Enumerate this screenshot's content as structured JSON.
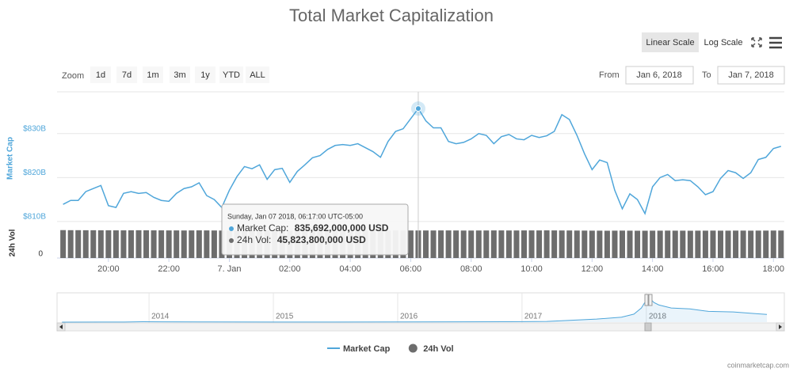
{
  "chart_data": {
    "type": "line",
    "title": "Total Market Capitalization",
    "controls": {
      "scale_buttons": [
        "Linear Scale",
        "Log Scale"
      ],
      "zoom_label": "Zoom",
      "zoom_buttons": [
        "1d",
        "7d",
        "1m",
        "3m",
        "1y",
        "YTD",
        "ALL"
      ],
      "from_label": "From",
      "from_value": "Jan 6, 2018",
      "to_label": "To",
      "to_value": "Jan 7, 2018"
    },
    "log_scale": false,
    "grid": true,
    "legend": "bottom",
    "y_label": "Market Cap",
    "y2_label": "24h Vol",
    "x": [
      18.5,
      18.75,
      19,
      19.25,
      19.5,
      19.75,
      20,
      20.25,
      20.5,
      20.75,
      21,
      21.25,
      21.5,
      21.75,
      22,
      22.25,
      22.5,
      22.75,
      23,
      23.25,
      23.5,
      23.75,
      24,
      24.25,
      24.5,
      24.75,
      25,
      25.25,
      25.5,
      25.75,
      26,
      26.25,
      26.5,
      26.75,
      27,
      27.25,
      27.5,
      27.75,
      28,
      28.25,
      28.5,
      28.75,
      29,
      29.25,
      29.5,
      29.75,
      30,
      30.25,
      30.5,
      30.75,
      31,
      31.25,
      31.5,
      31.75,
      32,
      32.25,
      32.5,
      32.75,
      33,
      33.25,
      33.5,
      33.75,
      34,
      34.25,
      34.5,
      34.75,
      35,
      35.25,
      35.5,
      35.75,
      36,
      36.25,
      36.5,
      36.75,
      37,
      37.25,
      37.5,
      37.75,
      38,
      38.25,
      38.5,
      38.75,
      39,
      39.25,
      39.5,
      39.75,
      40,
      40.25,
      40.5,
      40.75,
      41,
      41.25,
      41.5,
      41.75,
      42,
      42.25
    ],
    "xlim": [
      18.3,
      42.36
    ],
    "xticks": [
      {
        "value": 20,
        "label": "20:00"
      },
      {
        "value": 22,
        "label": "22:00"
      },
      {
        "value": 24,
        "label": "7. Jan"
      },
      {
        "value": 26,
        "label": "02:00"
      },
      {
        "value": 28,
        "label": "04:00"
      },
      {
        "value": 30,
        "label": "06:00"
      },
      {
        "value": 32,
        "label": "08:00"
      },
      {
        "value": 34,
        "label": "10:00"
      },
      {
        "value": 36,
        "label": "12:00"
      },
      {
        "value": 38,
        "label": "14:00"
      },
      {
        "value": 40,
        "label": "16:00"
      },
      {
        "value": 42,
        "label": "18:00"
      }
    ],
    "ylim": [
      808.9,
      839.5
    ],
    "yticks": [
      {
        "value": 810,
        "label": "$810B"
      },
      {
        "value": 820,
        "label": "$820B"
      },
      {
        "value": 830,
        "label": "$830B"
      }
    ],
    "y2lim": [
      0,
      50
    ],
    "y2ticks": [
      0
    ],
    "series": [
      {
        "name": "Market Cap",
        "color": "#4fa6da",
        "values": [
          813.9,
          814.8,
          814.8,
          816.8,
          817.5,
          818.2,
          813.6,
          813.2,
          816.4,
          816.8,
          816.4,
          816.6,
          815.5,
          814.8,
          814.6,
          816.4,
          817.5,
          817.9,
          818.8,
          815.9,
          815.0,
          813.2,
          817.1,
          820.2,
          822.5,
          822.0,
          822.9,
          819.6,
          821.8,
          822.1,
          818.9,
          821.4,
          822.9,
          824.5,
          825.0,
          826.4,
          827.3,
          827.5,
          827.3,
          827.7,
          826.8,
          825.9,
          824.6,
          828.2,
          830.5,
          831.1,
          833.4,
          835.692,
          832.9,
          831.3,
          831.3,
          828.2,
          827.7,
          828.0,
          828.8,
          830.0,
          829.6,
          827.7,
          829.3,
          829.8,
          828.8,
          828.6,
          829.6,
          829.1,
          829.5,
          830.5,
          834.3,
          833.2,
          829.6,
          825.4,
          821.8,
          824.0,
          823.4,
          817.1,
          812.9,
          816.3,
          815.0,
          811.8,
          817.9,
          820.0,
          820.7,
          819.3,
          819.5,
          819.3,
          817.9,
          816.1,
          816.8,
          819.8,
          821.6,
          821.1,
          819.8,
          821.1,
          824.1,
          824.6,
          826.6,
          827.1
        ]
      },
      {
        "name": "24h Vol",
        "color": "#6d6d6d",
        "axis": "y2",
        "values": [
          46.4,
          46.3,
          46.3,
          46.2,
          46.2,
          46.1,
          46.1,
          46.0,
          46.0,
          46.1,
          46.2,
          46.1,
          46.0,
          46.0,
          45.9,
          45.9,
          45.8,
          45.9,
          46.0,
          45.9,
          45.8,
          45.7,
          45.7,
          45.6,
          45.8,
          45.9,
          45.9,
          45.8,
          45.8,
          45.7,
          45.7,
          45.8,
          45.9,
          46.0,
          46.0,
          45.9,
          45.9,
          45.8,
          45.8,
          45.9,
          45.9,
          45.8,
          45.8,
          45.8,
          45.9,
          45.9,
          45.8,
          45.8238,
          45.8,
          45.8,
          45.9,
          45.9,
          45.8,
          45.7,
          45.7,
          45.8,
          45.8,
          45.9,
          45.9,
          45.8,
          45.8,
          45.9,
          45.9,
          45.9,
          46.0,
          45.9,
          45.8,
          45.8,
          45.7,
          45.6,
          45.5,
          45.5,
          45.4,
          45.5,
          45.6,
          45.5,
          45.4,
          45.4,
          45.5,
          45.5,
          45.6,
          45.5,
          45.5,
          45.4,
          45.5,
          45.5,
          45.6,
          45.5,
          45.5,
          45.6,
          45.6,
          45.5,
          45.6,
          45.6,
          45.7,
          45.7
        ]
      }
    ],
    "tooltip": {
      "index": 47,
      "header": "Sunday, Jan 07 2018, 06:17:00 UTC-05:00",
      "rows": [
        {
          "label": "Market Cap: ",
          "value": "835,692,000,000 USD"
        },
        {
          "label": "24h Vol: ",
          "value": "45,823,800,000 USD"
        }
      ]
    },
    "navigator": {
      "x": [
        2013.3,
        2013.8,
        2013.95,
        2014.1,
        2014.5,
        2015,
        2015.5,
        2016,
        2016.5,
        2016.9,
        2017.2,
        2017.4,
        2017.6,
        2017.8,
        2017.9,
        2017.96,
        2018.0,
        2018.02,
        2018.06,
        2018.1,
        2018.2,
        2018.35,
        2018.5,
        2018.7,
        2018.9,
        2018.97
      ],
      "values": [
        1.5,
        3,
        12,
        9,
        7,
        4,
        4,
        6,
        10,
        14,
        22,
        60,
        100,
        160,
        260,
        460,
        720,
        820,
        640,
        560,
        460,
        430,
        350,
        330,
        270,
        250
      ],
      "xlim": [
        2013.26,
        2019.11
      ],
      "ylim": [
        0,
        900
      ],
      "xticks": [
        {
          "value": 2014,
          "label": "2014"
        },
        {
          "value": 2015,
          "label": "2015"
        },
        {
          "value": 2016,
          "label": "2016"
        },
        {
          "value": 2017,
          "label": "2017"
        },
        {
          "value": 2018,
          "label": "2018"
        }
      ]
    },
    "credits": "coinmarketcap.com"
  }
}
